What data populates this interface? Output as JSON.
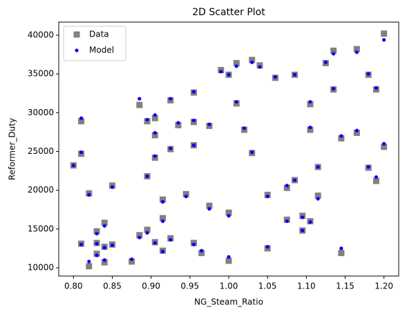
{
  "chart_data": {
    "type": "scatter",
    "title": "2D Scatter Plot",
    "x_label": "NG_Steam_Ratio",
    "y_label": "Reformer_Duty",
    "x": [
      0.8,
      0.81,
      0.81,
      0.81,
      0.82,
      0.82,
      0.83,
      0.83,
      0.83,
      0.84,
      0.84,
      0.84,
      0.85,
      0.85,
      0.875,
      0.885,
      0.885,
      0.895,
      0.895,
      0.895,
      0.905,
      0.905,
      0.905,
      0.905,
      0.915,
      0.915,
      0.915,
      0.925,
      0.925,
      0.925,
      0.935,
      0.945,
      0.955,
      0.955,
      0.955,
      0.955,
      0.965,
      0.975,
      0.975,
      0.99,
      1.0,
      1.0,
      1.0,
      1.01,
      1.01,
      1.02,
      1.03,
      1.03,
      1.04,
      1.05,
      1.05,
      1.06,
      1.075,
      1.075,
      1.085,
      1.085,
      1.095,
      1.095,
      1.105,
      1.105,
      1.105,
      1.115,
      1.115,
      1.125,
      1.135,
      1.135,
      1.145,
      1.145,
      1.165,
      1.165,
      1.18,
      1.18,
      1.19,
      1.19,
      1.2,
      1.2
    ],
    "series": [
      {
        "name": "Data",
        "color": "#808080",
        "marker": "square",
        "values": [
          23200,
          28900,
          24700,
          13100,
          19600,
          10200,
          14700,
          13200,
          11800,
          15800,
          12700,
          10700,
          20600,
          13000,
          10800,
          31000,
          14200,
          28900,
          21800,
          14900,
          29300,
          27100,
          24200,
          13300,
          18800,
          16400,
          12200,
          31600,
          25300,
          13800,
          28400,
          19500,
          32600,
          28800,
          25800,
          13200,
          11900,
          28300,
          18000,
          35500,
          34900,
          17100,
          10900,
          36400,
          31200,
          27800,
          36800,
          24800,
          36100,
          19400,
          12500,
          34500,
          20300,
          16200,
          34900,
          21300,
          16700,
          14800,
          31100,
          27800,
          16000,
          23000,
          19300,
          36400,
          38000,
          33000,
          26700,
          11900,
          38200,
          27400,
          34900,
          22900,
          33000,
          21200,
          40200,
          25600
        ]
      },
      {
        "name": "Model",
        "color": "#0000ff",
        "marker": "circle",
        "values": [
          23200,
          29300,
          24900,
          13000,
          19400,
          10800,
          14400,
          13100,
          11600,
          15400,
          12600,
          11000,
          20400,
          12900,
          11100,
          31800,
          13900,
          29100,
          21800,
          14500,
          29700,
          27400,
          24400,
          13200,
          18500,
          16000,
          12100,
          31800,
          25400,
          13600,
          28700,
          19200,
          32700,
          29000,
          25800,
          13000,
          12200,
          28500,
          17600,
          35300,
          34900,
          16700,
          11400,
          36000,
          31400,
          28000,
          36500,
          24900,
          35900,
          19200,
          12700,
          34600,
          20600,
          16000,
          34900,
          21300,
          16500,
          14800,
          31400,
          28100,
          15900,
          23000,
          18900,
          36500,
          37600,
          33100,
          27000,
          12500,
          37800,
          27700,
          35000,
          23000,
          33200,
          21700,
          39400,
          26000
        ]
      }
    ],
    "xlim": [
      0.781,
      1.219
    ],
    "ylim": [
      8930,
      41690
    ],
    "xticks": [
      {
        "value": 0.8,
        "label": "0.80"
      },
      0.85,
      {
        "value": 0.9,
        "label": "0.90"
      },
      0.95,
      {
        "value": 1.0,
        "label": "1.00"
      },
      1.05,
      {
        "value": 1.1,
        "label": "1.10"
      },
      1.15,
      {
        "value": 1.2,
        "label": "1.20"
      }
    ],
    "yticks": [
      10000,
      15000,
      20000,
      25000,
      30000,
      35000,
      40000
    ],
    "legend": "upper left"
  }
}
